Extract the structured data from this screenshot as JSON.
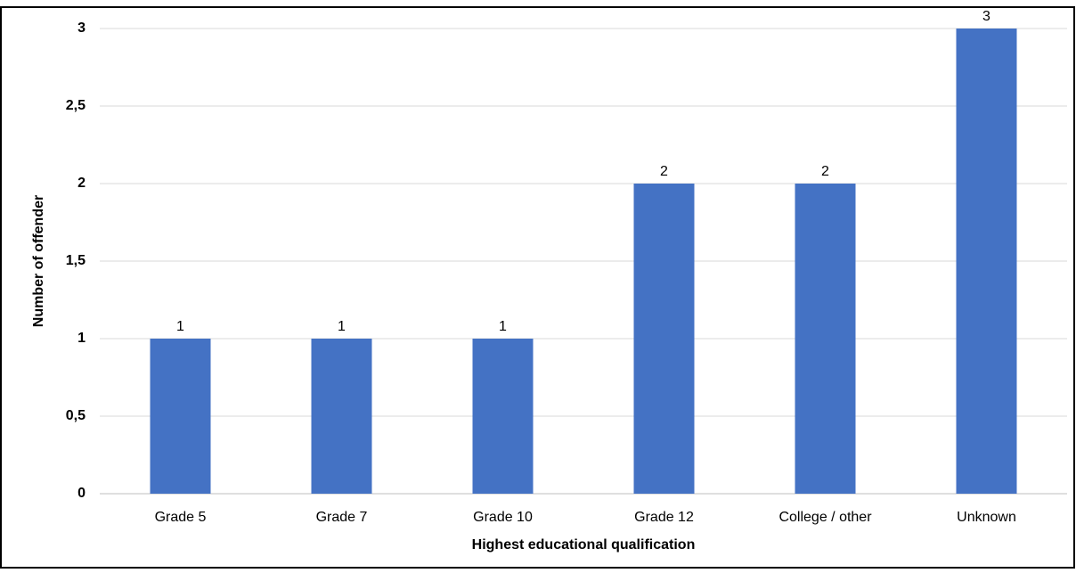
{
  "chart_data": {
    "type": "bar",
    "x_label": "Highest educational qualification",
    "y_label": "Number of offender",
    "categories": [
      "Grade 5",
      "Grade 7",
      "Grade 10",
      "Grade 12",
      "College / other",
      "Unknown"
    ],
    "values": [
      1,
      1,
      1,
      2,
      2,
      3
    ],
    "color": "#4472c4",
    "ylim": [
      0,
      3
    ],
    "yticks": [
      0,
      {
        "value": 0.5,
        "label": "0,5"
      },
      1,
      {
        "value": 1.5,
        "label": "1,5"
      },
      2,
      {
        "value": 2.5,
        "label": "2,5"
      },
      3
    ],
    "grid": true
  }
}
